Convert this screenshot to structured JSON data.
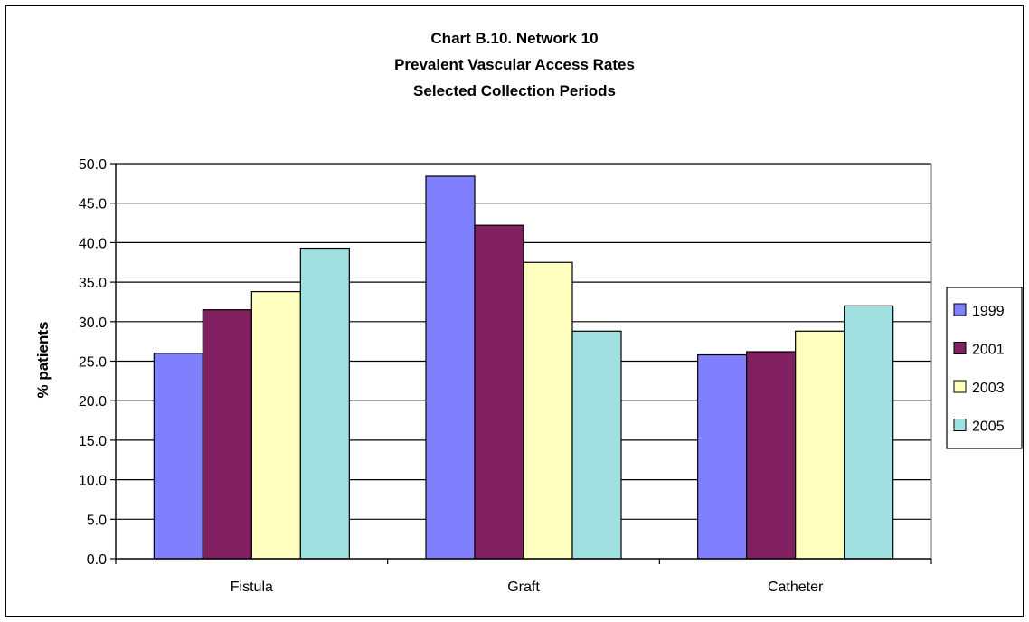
{
  "chart_data": {
    "type": "bar",
    "title_lines": [
      "Chart B.10. Network 10",
      "Prevalent Vascular Access Rates",
      "Selected Collection Periods"
    ],
    "ylabel": "% patients",
    "xlabel": "",
    "ylim": [
      0,
      50
    ],
    "yticks": [
      "0.0",
      "5.0",
      "10.0",
      "15.0",
      "20.0",
      "25.0",
      "30.0",
      "35.0",
      "40.0",
      "45.0",
      "50.0"
    ],
    "categories": [
      "Fistula",
      "Graft",
      "Catheter"
    ],
    "series": [
      {
        "name": "1999",
        "color": "#8080ff",
        "values": [
          26.0,
          48.4,
          25.8
        ]
      },
      {
        "name": "2001",
        "color": "#802060",
        "values": [
          31.5,
          42.2,
          26.2
        ]
      },
      {
        "name": "2003",
        "color": "#ffffc0",
        "values": [
          33.8,
          37.5,
          28.8
        ]
      },
      {
        "name": "2005",
        "color": "#a0e0e0",
        "values": [
          39.3,
          28.8,
          32.0
        ]
      }
    ],
    "grid": true,
    "legend_position": "right"
  }
}
